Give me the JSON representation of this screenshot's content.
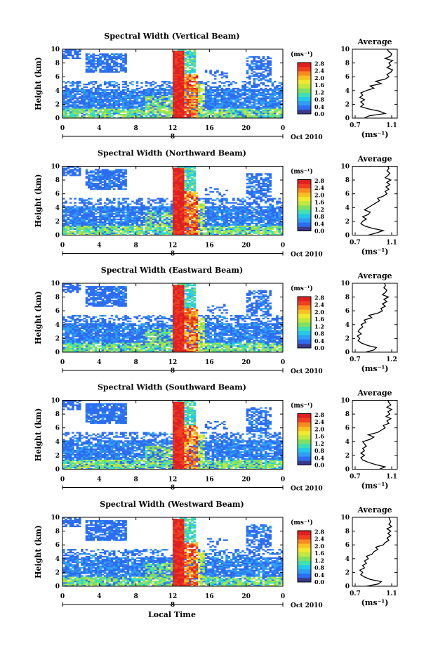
{
  "panels": [
    {
      "title": "Spectral Width (Vertical Beam)",
      "avg_title": "Average",
      "avg_xticks": [
        "0.7",
        "1.1"
      ],
      "avg_profile": [
        0.8,
        0.85,
        1.02,
        0.96,
        0.84,
        0.76,
        0.79,
        0.76,
        0.8,
        0.75,
        0.78,
        0.76,
        0.82,
        0.9,
        0.86,
        0.98,
        0.92,
        1.02,
        1.06,
        1.04,
        1.08,
        1.1,
        1.04,
        1.08,
        1.06,
        1.1,
        1.02,
        1.08,
        1.09,
        1.06,
        1.04
      ]
    },
    {
      "title": "Spectral Width (Northward Beam)",
      "avg_title": "Average",
      "avg_xticks": [
        "0.7",
        "1.1"
      ],
      "avg_profile": [
        0.84,
        0.93,
        1.0,
        0.88,
        0.8,
        0.76,
        0.78,
        0.82,
        0.78,
        0.84,
        0.86,
        0.8,
        0.84,
        0.88,
        0.92,
        0.96,
        0.94,
        1.0,
        1.04,
        1.02,
        1.06,
        1.03,
        1.07,
        1.04,
        1.08,
        1.02,
        1.05,
        1.07,
        1.04,
        1.06,
        1.05
      ]
    },
    {
      "title": "Spectral Width (Eastward Beam)",
      "avg_title": "Average",
      "avg_xticks": [
        "0.7",
        "1.2"
      ],
      "avg_profile": [
        0.84,
        0.95,
        0.98,
        0.86,
        0.78,
        0.74,
        0.76,
        0.73,
        0.78,
        0.74,
        0.76,
        0.8,
        0.78,
        0.84,
        0.82,
        0.92,
        0.88,
        1.0,
        1.06,
        1.04,
        1.1,
        1.06,
        1.12,
        1.08,
        1.14,
        1.06,
        1.1,
        1.12,
        1.08,
        1.1,
        1.09
      ]
    },
    {
      "title": "Spectral Width (Southward Beam)",
      "avg_title": "Average",
      "avg_xticks": [
        "0.7",
        "1.1"
      ],
      "avg_profile": [
        0.96,
        1.02,
        0.92,
        0.84,
        0.78,
        0.76,
        0.8,
        0.76,
        0.8,
        0.78,
        0.82,
        0.8,
        0.78,
        0.86,
        0.9,
        0.84,
        0.94,
        0.98,
        1.02,
        1.0,
        1.06,
        1.04,
        1.08,
        1.03,
        1.07,
        1.05,
        1.09,
        1.04,
        1.08,
        1.06,
        1.05
      ]
    },
    {
      "title": "Spectral Width (Westward Beam)",
      "avg_title": "Average",
      "avg_xticks": [
        "0.7",
        "1.1"
      ],
      "avg_profile": [
        0.82,
        0.95,
        0.98,
        0.86,
        0.8,
        0.76,
        0.78,
        0.75,
        0.8,
        0.78,
        0.82,
        0.8,
        0.84,
        0.82,
        0.88,
        0.9,
        0.94,
        0.92,
        1.0,
        1.02,
        1.06,
        1.04,
        1.08,
        1.05,
        1.08,
        1.04,
        1.09,
        1.06,
        1.08,
        1.07,
        1.06
      ]
    }
  ],
  "common": {
    "ylabel": "Height (km)",
    "yticks": [
      "0",
      "2",
      "4",
      "6",
      "8",
      "10"
    ],
    "xticks": [
      "0",
      "4",
      "8",
      "12",
      "16",
      "20",
      "0"
    ],
    "date_day": "8",
    "date_label": "Oct 2010",
    "cb_unit": "(ms⁻¹)",
    "cb_ticks": [
      "0.0",
      "0.4",
      "0.8",
      "1.2",
      "1.6",
      "2.0",
      "2.4",
      "2.8"
    ],
    "avg_unit": "(ms⁻¹)",
    "xlabel": "Local Time"
  },
  "chart_data": {
    "type": "heatmap",
    "quantity": "Spectral Width",
    "x_range_hours": [
      0,
      24
    ],
    "y_range_km": [
      0,
      10
    ],
    "color_range": [
      0.0,
      2.8
    ],
    "beams": [
      "Vertical",
      "Northward",
      "Eastward",
      "Southward",
      "Westward"
    ]
  },
  "colors": {
    "scale": [
      "#3a3a8c",
      "#2d6df0",
      "#2f9ef5",
      "#25c8e8",
      "#40e0b0",
      "#80e060",
      "#c0e840",
      "#f0e830",
      "#f8c020",
      "#f88a20",
      "#f04020",
      "#e02020"
    ]
  }
}
